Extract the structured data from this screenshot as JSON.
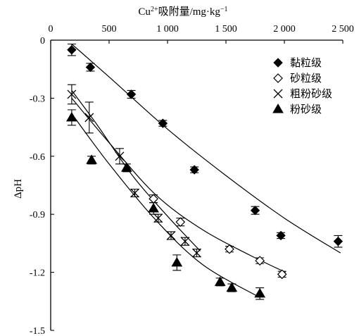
{
  "chart_data": {
    "type": "scatter",
    "title": "",
    "xlabel_prefix": "Cu",
    "xlabel_sup": "2+",
    "xlabel_main": "吸附量/mg·kg",
    "xlabel_unit_sup": "−1",
    "ylabel": "ΔpH",
    "xlim": [
      0,
      2500
    ],
    "ylim": [
      -1.5,
      0
    ],
    "x_axis_position": "top",
    "x_ticks": [
      0,
      500,
      1000,
      1500,
      2000,
      2500
    ],
    "x_tick_labels": [
      "0",
      "500",
      "1 000",
      "1 500",
      "2 000",
      "2 500"
    ],
    "y_ticks": [
      0,
      -0.3,
      -0.6,
      -0.9,
      -1.2,
      -1.5
    ],
    "y_tick_labels": [
      "0",
      "-0.3",
      "-0.6",
      "-0.9",
      "-1.2",
      "-1.5"
    ],
    "grid": false,
    "legend_position": "top-right",
    "series": [
      {
        "name": "黏粒级",
        "marker": "filled-diamond",
        "x": [
          180,
          340,
          690,
          960,
          1230,
          1750,
          1970,
          2460
        ],
        "y": [
          -0.05,
          -0.14,
          -0.28,
          -0.43,
          -0.67,
          -0.88,
          -1.01,
          -1.04
        ],
        "err": [
          0.03,
          0.02,
          0.02,
          0.015,
          0.015,
          0.02,
          0.015,
          0.03
        ],
        "fit": [
          [
            180,
            -0.02
          ],
          [
            500,
            -0.19
          ],
          [
            1000,
            -0.46
          ],
          [
            1500,
            -0.7
          ],
          [
            2000,
            -0.92
          ],
          [
            2480,
            -1.1
          ]
        ]
      },
      {
        "name": "砂粒级",
        "marker": "open-diamond",
        "x": [
          880,
          1110,
          1530,
          1790,
          1980
        ],
        "y": [
          -0.82,
          -0.94,
          -1.08,
          -1.14,
          -1.21
        ],
        "err": [
          0.02,
          0.02,
          0.015,
          0.015,
          0.015
        ],
        "fit": [
          [
            180,
            -0.3
          ],
          [
            500,
            -0.53
          ],
          [
            900,
            -0.8
          ],
          [
            1300,
            -0.98
          ],
          [
            1700,
            -1.11
          ],
          [
            2010,
            -1.2
          ]
        ]
      },
      {
        "name": "粗粉砂级",
        "marker": "cross",
        "x": [
          180,
          330,
          590,
          720,
          920,
          1030,
          1150,
          1250
        ],
        "y": [
          -0.28,
          -0.4,
          -0.6,
          -0.79,
          -0.92,
          -1.01,
          -1.04,
          -1.1
        ],
        "err": [
          0.05,
          0.08,
          0.04,
          0.02,
          0.02,
          0.02,
          0.02,
          0.02
        ],
        "fit": [
          [
            180,
            -0.26
          ],
          [
            400,
            -0.44
          ],
          [
            700,
            -0.7
          ],
          [
            1000,
            -0.91
          ],
          [
            1280,
            -1.09
          ]
        ]
      },
      {
        "name": "粉砂级",
        "marker": "filled-triangle",
        "x": [
          180,
          350,
          650,
          880,
          1080,
          1450,
          1550,
          1790
        ],
        "y": [
          -0.4,
          -0.62,
          -0.66,
          -0.87,
          -1.15,
          -1.25,
          -1.28,
          -1.31
        ],
        "err": [
          0.04,
          0.02,
          0.02,
          0.03,
          0.04,
          0.02,
          0.02,
          0.03
        ],
        "fit": [
          [
            180,
            -0.38
          ],
          [
            500,
            -0.64
          ],
          [
            900,
            -0.93
          ],
          [
            1300,
            -1.16
          ],
          [
            1790,
            -1.33
          ]
        ]
      }
    ]
  }
}
